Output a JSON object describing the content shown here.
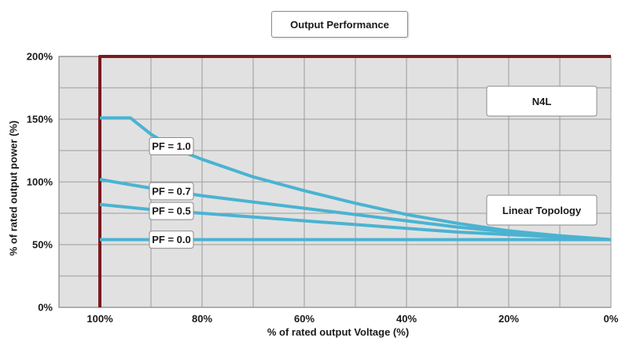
{
  "chart_data": {
    "type": "line",
    "title": "Output Performance",
    "xlabel": "% of rated output Voltage (%)",
    "ylabel": "% of rated output power (%)",
    "x_reversed": true,
    "xlim": [
      0,
      108
    ],
    "ylim": [
      0,
      200
    ],
    "x_ticks": [
      {
        "value": 100,
        "label": "100%"
      },
      {
        "value": 80,
        "label": "80%"
      },
      {
        "value": 60,
        "label": "60%"
      },
      {
        "value": 40,
        "label": "40%"
      },
      {
        "value": 20,
        "label": "20%"
      },
      {
        "value": 0,
        "label": "0%"
      }
    ],
    "y_ticks": [
      {
        "value": 200,
        "label": "200%"
      },
      {
        "value": 150,
        "label": "150%"
      },
      {
        "value": 100,
        "label": "100%"
      },
      {
        "value": 50,
        "label": "50%"
      },
      {
        "value": 0,
        "label": "0%"
      }
    ],
    "grid": true,
    "colors": {
      "n4l": "#7b1a1f",
      "linear": "#4ab3d1",
      "plot_bg": "#e1e1e1",
      "grid": "#9a9a9a"
    },
    "annotations": [
      {
        "text": "N4L",
        "position": "top-right"
      },
      {
        "text": "Linear Topology",
        "position": "right"
      }
    ],
    "series": [
      {
        "name": "N4L",
        "color": "#7b1a1f",
        "x": [
          100,
          100,
          0
        ],
        "y": [
          0,
          200,
          200
        ]
      },
      {
        "name": "PF = 1.0",
        "color": "#4ab3d1",
        "x": [
          100,
          94,
          90,
          85,
          80,
          70,
          60,
          50,
          40,
          30,
          20,
          10,
          0
        ],
        "y": [
          151,
          151,
          138,
          126,
          118,
          104,
          93,
          83,
          74,
          67,
          61,
          57,
          54
        ],
        "label_at": 86
      },
      {
        "name": "PF = 0.7",
        "color": "#4ab3d1",
        "x": [
          100,
          90,
          80,
          70,
          60,
          50,
          40,
          30,
          20,
          10,
          0
        ],
        "y": [
          102,
          95,
          89,
          84,
          79,
          74,
          69,
          64,
          60,
          57,
          54
        ],
        "label_at": 86
      },
      {
        "name": "PF = 0.5",
        "color": "#4ab3d1",
        "x": [
          100,
          90,
          80,
          70,
          60,
          50,
          40,
          30,
          20,
          10,
          0
        ],
        "y": [
          82,
          78,
          75,
          72,
          69,
          66,
          63,
          60,
          58,
          56,
          54
        ],
        "label_at": 86
      },
      {
        "name": "PF = 0.0",
        "color": "#4ab3d1",
        "x": [
          100,
          0
        ],
        "y": [
          54,
          54
        ],
        "label_at": 86
      }
    ]
  }
}
